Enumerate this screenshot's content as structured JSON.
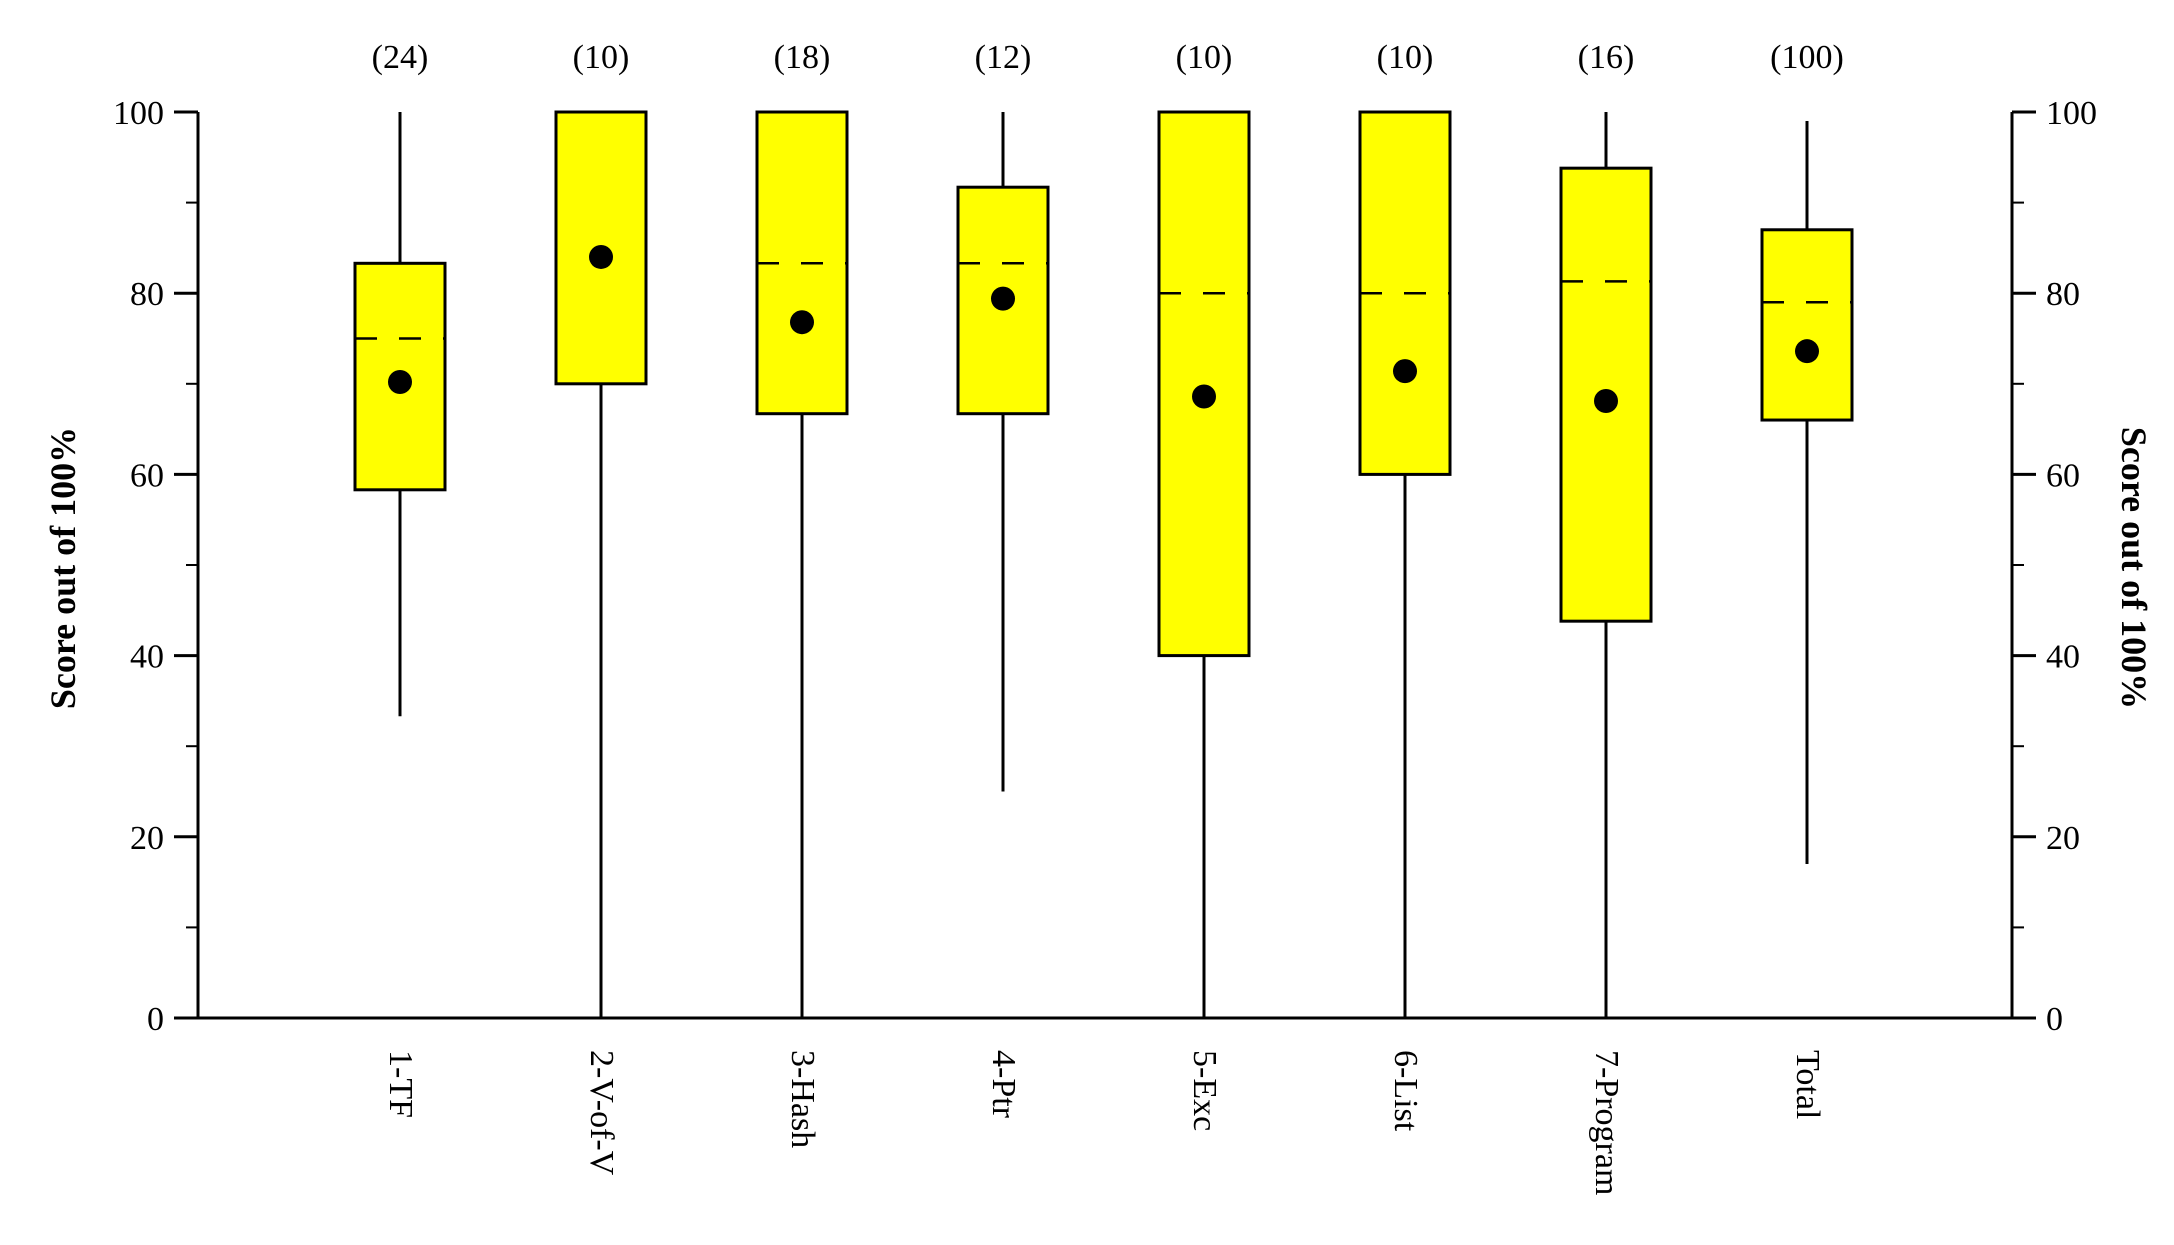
{
  "chart_data": {
    "type": "box",
    "title": "",
    "ylabel_left": "Score out of 100%",
    "ylabel_right": "Score out of 100%",
    "ylim": [
      0,
      100
    ],
    "yticks": [
      0,
      20,
      40,
      60,
      80,
      100
    ],
    "yminor_step": 10,
    "box_color": "#ffff00",
    "categories": [
      "1-TF",
      "2-V-of-V",
      "3-Hash",
      "4-Ptr",
      "5-Exc",
      "6-List",
      "7-Program",
      "Total"
    ],
    "counts": [
      "(24)",
      "(10)",
      "(18)",
      "(12)",
      "(10)",
      "(10)",
      "(16)",
      "(100)"
    ],
    "boxes": [
      {
        "whisker_low": 33.3,
        "q1": 58.3,
        "median": 75.0,
        "q3": 83.3,
        "whisker_high": 100,
        "mean": 70.2
      },
      {
        "whisker_low": 0,
        "q1": 70.0,
        "median": 100,
        "q3": 100,
        "whisker_high": 100,
        "mean": 84.0
      },
      {
        "whisker_low": 0,
        "q1": 66.7,
        "median": 83.3,
        "q3": 100,
        "whisker_high": 100,
        "mean": 76.8
      },
      {
        "whisker_low": 25.0,
        "q1": 66.7,
        "median": 83.3,
        "q3": 91.7,
        "whisker_high": 100,
        "mean": 79.4
      },
      {
        "whisker_low": 0,
        "q1": 40.0,
        "median": 80.0,
        "q3": 100,
        "whisker_high": 100,
        "mean": 68.6
      },
      {
        "whisker_low": 0,
        "q1": 60.0,
        "median": 80.0,
        "q3": 100,
        "whisker_high": 100,
        "mean": 71.4
      },
      {
        "whisker_low": 0,
        "q1": 43.8,
        "median": 81.3,
        "q3": 93.8,
        "whisker_high": 100,
        "mean": 68.1
      },
      {
        "whisker_low": 17.0,
        "q1": 66.0,
        "median": 79.0,
        "q3": 87.0,
        "whisker_high": 99.0,
        "mean": 73.6
      }
    ]
  }
}
